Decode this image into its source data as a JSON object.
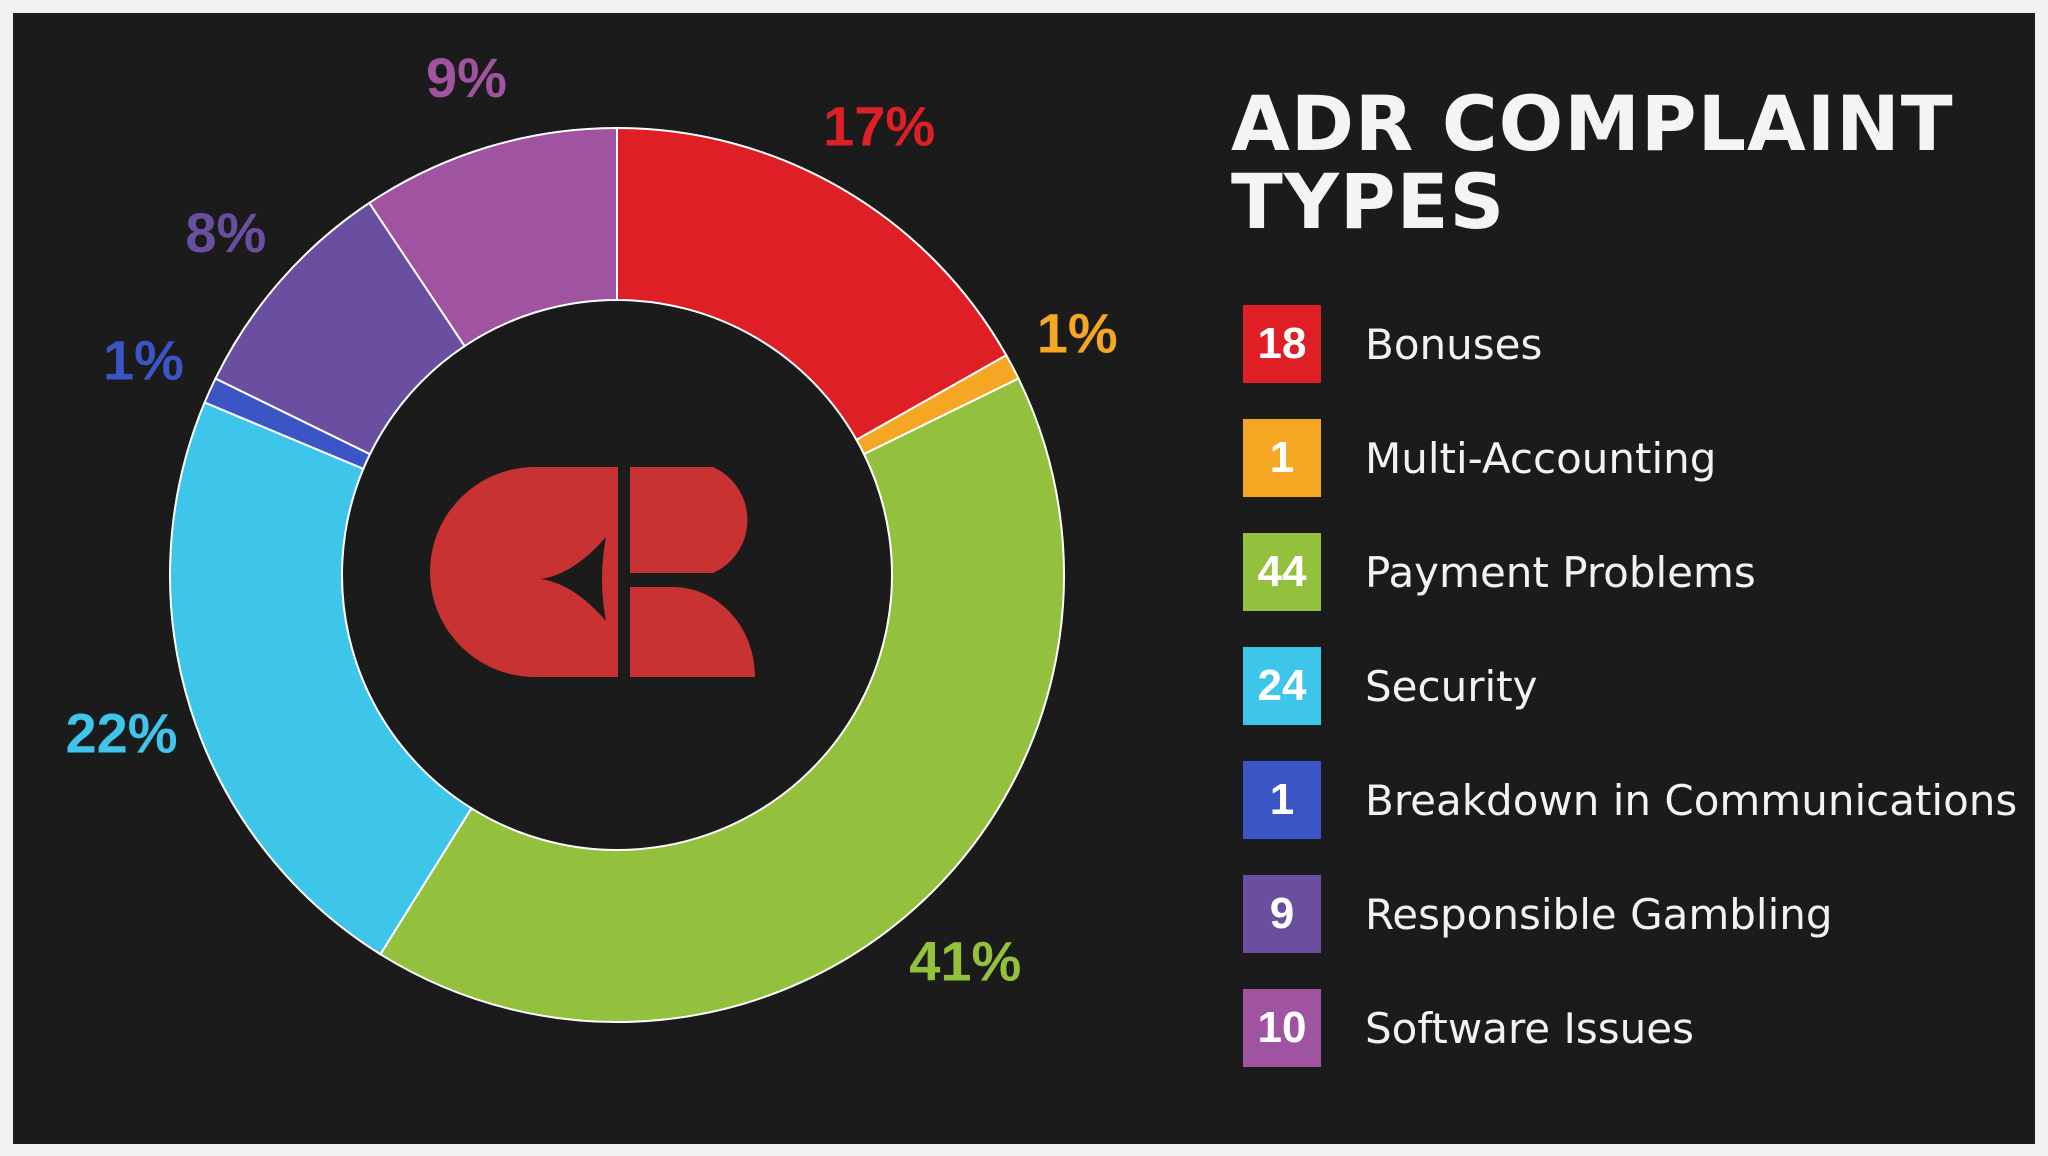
{
  "chart_data": {
    "type": "pie",
    "title": [
      "ADR COMPLAINT",
      "TYPES"
    ],
    "center_logo": "casino-guru-logo",
    "slices": [
      {
        "label": "Bonuses",
        "value": 18,
        "percent": "17%",
        "color": "#de1f26"
      },
      {
        "label": "Multi-Accounting",
        "value": 1,
        "percent": "1%",
        "color": "#f5a623"
      },
      {
        "label": "Payment Problems",
        "value": 44,
        "percent": "41%",
        "color": "#93c13e"
      },
      {
        "label": "Security",
        "value": 24,
        "percent": "22%",
        "color": "#3ec6ea"
      },
      {
        "label": "Breakdown in Communications",
        "value": 1,
        "percent": "1%",
        "color": "#3b55c4"
      },
      {
        "label": "Responsible Gambling",
        "value": 9,
        "percent": "8%",
        "color": "#6a4fa0"
      },
      {
        "label": "Software Issues",
        "value": 10,
        "percent": "9%",
        "color": "#a053a1"
      }
    ],
    "legend_placement": "right"
  }
}
